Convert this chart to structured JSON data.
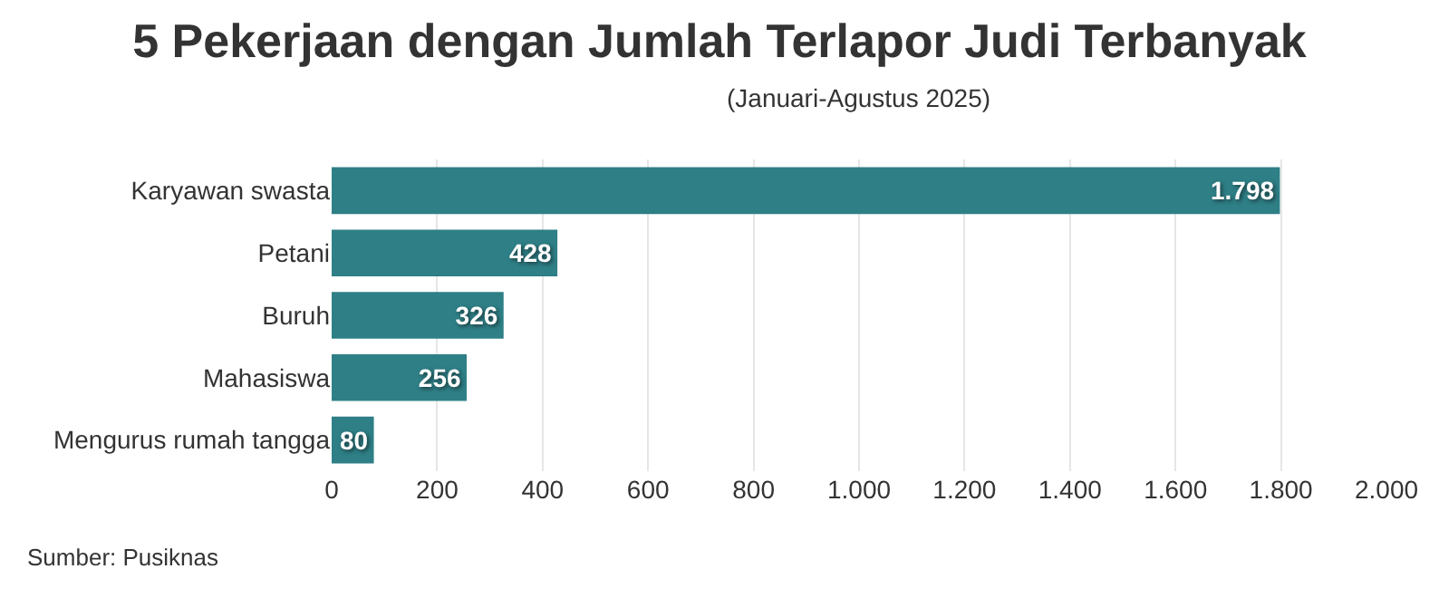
{
  "chart_data": {
    "type": "bar",
    "orientation": "horizontal",
    "title": "5 Pekerjaan dengan Jumlah Terlapor Judi Terbanyak",
    "subtitle": "(Januari-Agustus 2025)",
    "categories": [
      "Karyawan swasta",
      "Petani",
      "Buruh",
      "Mahasiswa",
      "Mengurus rumah tangga"
    ],
    "values": [
      1798,
      428,
      326,
      256,
      80
    ],
    "value_labels": [
      "1.798",
      "428",
      "326",
      "256",
      "80"
    ],
    "color": "#2e7f86",
    "xlim": [
      0,
      2000
    ],
    "xticks": [
      0,
      200,
      400,
      600,
      800,
      {
        "value": 1000,
        "label": "1.000"
      },
      {
        "value": 1200,
        "label": "1.200"
      },
      {
        "value": 1400,
        "label": "1.400"
      },
      {
        "value": 1600,
        "label": "1.600"
      },
      {
        "value": 1800,
        "label": "1.800"
      },
      {
        "value": 2000,
        "label": "2.000"
      }
    ],
    "grid": "x",
    "annotations": [
      "Sumber: Pusiknas"
    ]
  }
}
